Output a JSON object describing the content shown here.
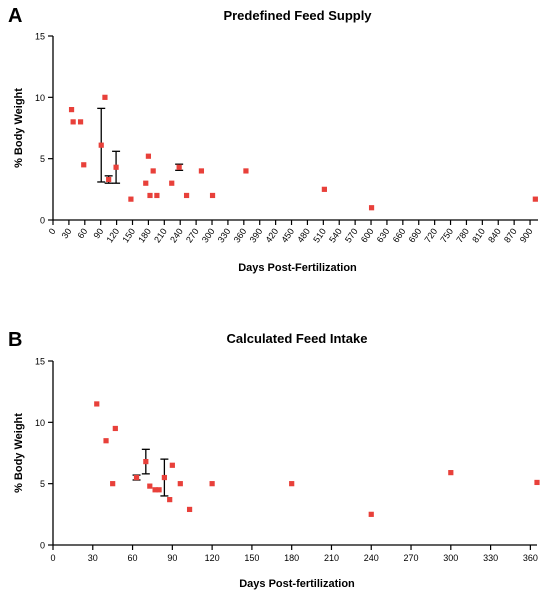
{
  "chart_data": [
    {
      "panel_letter": "A",
      "type": "scatter",
      "title": "Predefined Feed Supply",
      "xlabel": "Days Post-Fertilization",
      "ylabel": "% Body Weight",
      "xlim": [
        0,
        915
      ],
      "ylim": [
        0,
        15
      ],
      "x_ticks": [
        0,
        30,
        60,
        90,
        120,
        150,
        180,
        210,
        240,
        270,
        300,
        330,
        360,
        390,
        420,
        450,
        480,
        510,
        540,
        570,
        600,
        630,
        660,
        690,
        720,
        750,
        780,
        810,
        840,
        870,
        900
      ],
      "x_tick_rotation": -55,
      "y_ticks": [
        0,
        5,
        10,
        15
      ],
      "grid": false,
      "marker_color": "#e8403a",
      "points": [
        {
          "x": 35,
          "y": 9.0
        },
        {
          "x": 38,
          "y": 8.0
        },
        {
          "x": 52,
          "y": 8.0
        },
        {
          "x": 58,
          "y": 4.5
        },
        {
          "x": 91,
          "y": 6.1,
          "err": 3.0
        },
        {
          "x": 98,
          "y": 10.0
        },
        {
          "x": 105,
          "y": 3.3,
          "err": 0.3
        },
        {
          "x": 119,
          "y": 4.3,
          "err": 1.3
        },
        {
          "x": 147,
          "y": 1.7
        },
        {
          "x": 175,
          "y": 3.0
        },
        {
          "x": 180,
          "y": 5.2
        },
        {
          "x": 183,
          "y": 2.0
        },
        {
          "x": 189,
          "y": 4.0
        },
        {
          "x": 196,
          "y": 2.0
        },
        {
          "x": 224,
          "y": 3.0
        },
        {
          "x": 238,
          "y": 4.3,
          "err": 0.25
        },
        {
          "x": 252,
          "y": 2.0
        },
        {
          "x": 280,
          "y": 4.0
        },
        {
          "x": 301,
          "y": 2.0
        },
        {
          "x": 364,
          "y": 4.0
        },
        {
          "x": 512,
          "y": 2.5
        },
        {
          "x": 601,
          "y": 1.0
        },
        {
          "x": 910,
          "y": 1.7
        }
      ]
    },
    {
      "panel_letter": "B",
      "type": "scatter",
      "title": "Calculated Feed Intake",
      "xlabel": "Days Post-fertilization",
      "ylabel": "% Body Weight",
      "xlim": [
        0,
        365
      ],
      "ylim": [
        0,
        15
      ],
      "x_ticks": [
        0,
        30,
        60,
        90,
        120,
        150,
        180,
        210,
        240,
        270,
        300,
        330,
        360
      ],
      "x_tick_rotation": 0,
      "y_ticks": [
        0,
        5,
        10,
        15
      ],
      "grid": false,
      "marker_color": "#e8403a",
      "points": [
        {
          "x": 33,
          "y": 11.5
        },
        {
          "x": 40,
          "y": 8.5
        },
        {
          "x": 45,
          "y": 5.0
        },
        {
          "x": 47,
          "y": 9.5
        },
        {
          "x": 63,
          "y": 5.5,
          "err": 0.2
        },
        {
          "x": 70,
          "y": 6.8,
          "err": 1.0
        },
        {
          "x": 73,
          "y": 4.8
        },
        {
          "x": 77,
          "y": 4.5
        },
        {
          "x": 80,
          "y": 4.5
        },
        {
          "x": 84,
          "y": 5.5,
          "err": 1.5
        },
        {
          "x": 88,
          "y": 3.7
        },
        {
          "x": 90,
          "y": 6.5
        },
        {
          "x": 96,
          "y": 5.0
        },
        {
          "x": 103,
          "y": 2.9
        },
        {
          "x": 120,
          "y": 5.0
        },
        {
          "x": 180,
          "y": 5.0
        },
        {
          "x": 240,
          "y": 2.5
        },
        {
          "x": 300,
          "y": 5.9
        },
        {
          "x": 365,
          "y": 5.1
        }
      ]
    }
  ]
}
